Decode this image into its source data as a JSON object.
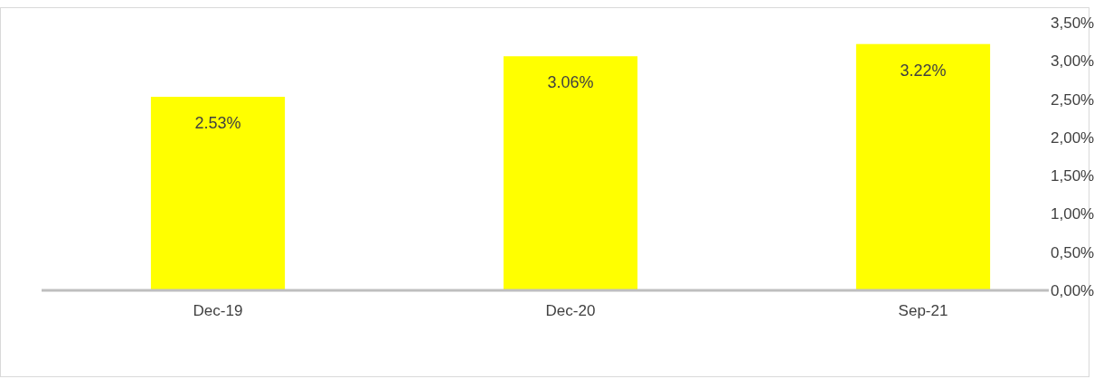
{
  "chart_data": {
    "type": "bar",
    "categories": [
      "Dec-19",
      "Dec-20",
      "Sep-21"
    ],
    "values": [
      2.53,
      3.06,
      3.22
    ],
    "color": "#ffff00",
    "value_labels": [
      "2.53%",
      "3.06%",
      "3.22%"
    ],
    "ylim": [
      0,
      3.5
    ],
    "yticks": [
      {
        "value": 0,
        "label": "0,00%"
      },
      {
        "value": 0.5,
        "label": "0,50%"
      },
      {
        "value": 1,
        "label": "1,00%"
      },
      {
        "value": 1.5,
        "label": "1,50%"
      },
      {
        "value": 2,
        "label": "2,00%"
      },
      {
        "value": 2.5,
        "label": "2,50%"
      },
      {
        "value": 3,
        "label": "3,00%"
      },
      {
        "value": 3.5,
        "label": "3,50%"
      }
    ],
    "grid": false
  }
}
